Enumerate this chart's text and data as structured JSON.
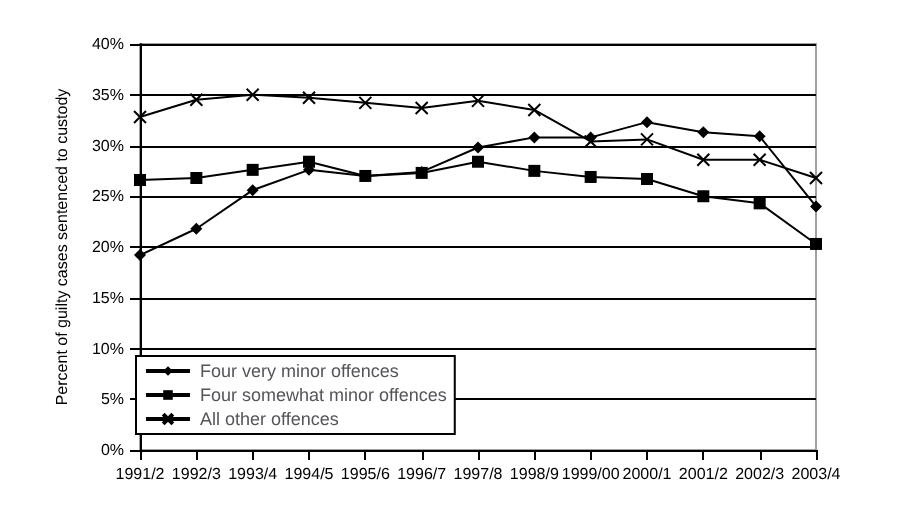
{
  "chart_data": {
    "type": "line",
    "ylabel": "Percent of guilty cases sentenced to custody",
    "categories": [
      "1991/2",
      "1992/3",
      "1993/4",
      "1994/5",
      "1995/6",
      "1996/7",
      "1997/8",
      "1998/9",
      "1999/00",
      "2000/1",
      "2001/2",
      "2002/3",
      "2003/4"
    ],
    "series": [
      {
        "name": "Four very minor offences",
        "color": "#000000",
        "marker": "diamond",
        "values": [
          19.2,
          21.8,
          25.6,
          27.6,
          27.0,
          27.4,
          29.8,
          30.8,
          30.8,
          32.3,
          31.3,
          30.9,
          24.0
        ]
      },
      {
        "name": "Four somewhat minor offences",
        "color": "#000000",
        "marker": "square",
        "values": [
          26.6,
          26.8,
          27.6,
          28.4,
          27.0,
          27.3,
          28.4,
          27.5,
          26.9,
          26.7,
          25.0,
          24.3,
          20.3
        ]
      },
      {
        "name": "All other offences",
        "color": "#000000",
        "marker": "cross",
        "values": [
          32.8,
          34.5,
          35.0,
          34.7,
          34.2,
          33.7,
          34.4,
          33.5,
          30.4,
          30.6,
          28.6,
          28.6,
          26.8
        ]
      }
    ],
    "ylim": [
      0,
      40
    ],
    "yticks": [
      {
        "value": 0,
        "label": "0%"
      },
      {
        "value": 5,
        "label": "5%"
      },
      {
        "value": 10,
        "label": "10%"
      },
      {
        "value": 15,
        "label": "15%"
      },
      {
        "value": 20,
        "label": "20%"
      },
      {
        "value": 25,
        "label": "25%"
      },
      {
        "value": 30,
        "label": "30%"
      },
      {
        "value": 35,
        "label": "35%"
      },
      {
        "value": 40,
        "label": "40%"
      }
    ],
    "grid": "y",
    "legend": "bottom left"
  }
}
